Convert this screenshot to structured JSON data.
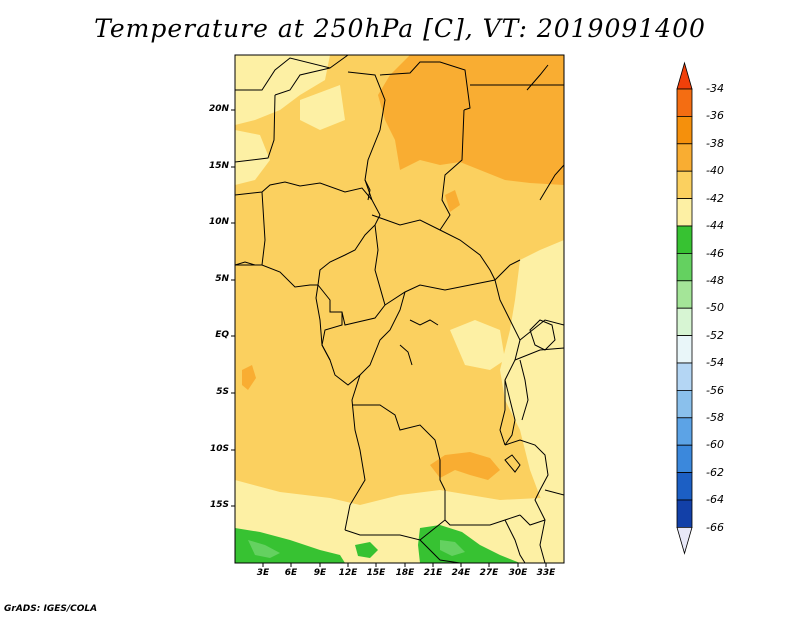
{
  "title": "Temperature at 250hPa [C], VT: 2019091400",
  "credit": "GrADS: IGES/COLA",
  "map": {
    "lat_labels": [
      "20N",
      "15N",
      "10N",
      "5N",
      "EQ",
      "5S",
      "10S",
      "15S"
    ],
    "lon_labels": [
      "3E",
      "6E",
      "9E",
      "12E",
      "15E",
      "18E",
      "21E",
      "24E",
      "27E",
      "30E",
      "33E"
    ],
    "lat_range": [
      -19.5,
      24.5
    ],
    "lon_range": [
      0,
      35
    ]
  },
  "colorbar": {
    "labels": [
      "-34",
      "-36",
      "-38",
      "-40",
      "-42",
      "-44",
      "-46",
      "-48",
      "-50",
      "-52",
      "-54",
      "-56",
      "-58",
      "-60",
      "-62",
      "-64",
      "-66"
    ],
    "colors": [
      "#f46d12",
      "#f5900c",
      "#f9ad32",
      "#fbd05f",
      "#fdf0a4",
      "#37c232",
      "#64d160",
      "#a4e598",
      "#d7f5d3",
      "#e9f6f9",
      "#b4d6f4",
      "#8ac0ec",
      "#5ca3e6",
      "#3b88dc",
      "#1c5fc4",
      "#1240a8",
      "#0a1b7a"
    ],
    "top_color": "#f0400a",
    "bottom_color": "#e8e8f8"
  },
  "legend_colors": {
    "base": "#fbd05f",
    "warm": "#f9ad32",
    "cool": "#fdf0a4",
    "green": "#37c232",
    "lightgreen": "#64d160"
  }
}
